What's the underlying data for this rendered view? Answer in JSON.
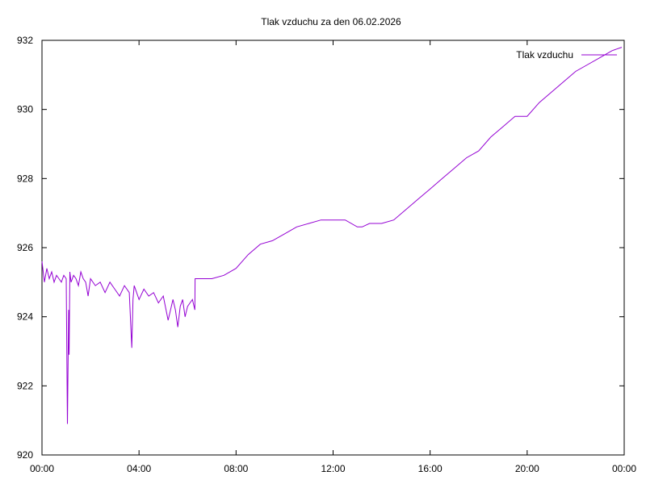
{
  "chart_data": {
    "type": "line",
    "title": "Tlak vzduchu za den 06.02.2026",
    "xlabel": "",
    "ylabel": "",
    "x_unit": "hours",
    "xlim": [
      0,
      24
    ],
    "ylim": [
      920,
      932
    ],
    "x_ticks": [
      {
        "value": 0,
        "label": "00:00"
      },
      {
        "value": 4,
        "label": "04:00"
      },
      {
        "value": 8,
        "label": "08:00"
      },
      {
        "value": 12,
        "label": "12:00"
      },
      {
        "value": 16,
        "label": "16:00"
      },
      {
        "value": 20,
        "label": "20:00"
      },
      {
        "value": 24,
        "label": "00:00"
      }
    ],
    "y_ticks": [
      920,
      922,
      924,
      926,
      928,
      930,
      932
    ],
    "grid": false,
    "legend_position": "top-right",
    "colors": {
      "series": "#9400d3",
      "axis": "#000000"
    },
    "series": [
      {
        "name": "Tlak vzduchu",
        "x": [
          0.0,
          0.1,
          0.2,
          0.3,
          0.4,
          0.5,
          0.6,
          0.7,
          0.8,
          0.9,
          1.0,
          1.05,
          1.1,
          1.12,
          1.15,
          1.2,
          1.3,
          1.4,
          1.5,
          1.6,
          1.7,
          1.8,
          1.9,
          2.0,
          2.2,
          2.4,
          2.6,
          2.8,
          3.0,
          3.2,
          3.4,
          3.6,
          3.7,
          3.75,
          3.8,
          4.0,
          4.2,
          4.4,
          4.6,
          4.8,
          5.0,
          5.2,
          5.4,
          5.5,
          5.6,
          5.7,
          5.8,
          5.9,
          6.0,
          6.1,
          6.2,
          6.3,
          6.31,
          6.5,
          7.0,
          7.5,
          8.0,
          8.5,
          9.0,
          9.5,
          10.0,
          10.5,
          11.0,
          11.5,
          12.0,
          12.5,
          13.0,
          13.2,
          13.5,
          14.0,
          14.5,
          15.0,
          15.5,
          16.0,
          16.5,
          17.0,
          17.5,
          18.0,
          18.5,
          19.0,
          19.5,
          20.0,
          20.5,
          21.0,
          21.5,
          22.0,
          22.5,
          23.0,
          23.5,
          23.9
        ],
        "values": [
          925.6,
          925.0,
          925.4,
          925.1,
          925.3,
          925.0,
          925.2,
          925.1,
          925.0,
          925.2,
          925.1,
          920.9,
          924.2,
          922.9,
          925.3,
          925.0,
          925.2,
          925.1,
          924.9,
          925.3,
          925.1,
          925.0,
          924.6,
          925.1,
          924.9,
          925.0,
          924.7,
          925.0,
          924.8,
          924.6,
          924.9,
          924.7,
          923.1,
          924.5,
          924.9,
          924.5,
          924.8,
          924.6,
          924.7,
          924.4,
          924.6,
          923.9,
          924.5,
          924.2,
          923.7,
          924.3,
          924.5,
          924.0,
          924.3,
          924.4,
          924.5,
          924.2,
          925.1,
          925.1,
          925.1,
          925.2,
          925.4,
          925.8,
          926.1,
          926.2,
          926.4,
          926.6,
          926.7,
          926.8,
          926.8,
          926.8,
          926.6,
          926.6,
          926.7,
          926.7,
          926.8,
          927.1,
          927.4,
          927.7,
          928.0,
          928.3,
          928.6,
          928.8,
          929.2,
          929.5,
          929.8,
          929.8,
          930.2,
          930.5,
          930.8,
          931.1,
          931.3,
          931.5,
          931.7,
          931.8
        ]
      }
    ]
  }
}
